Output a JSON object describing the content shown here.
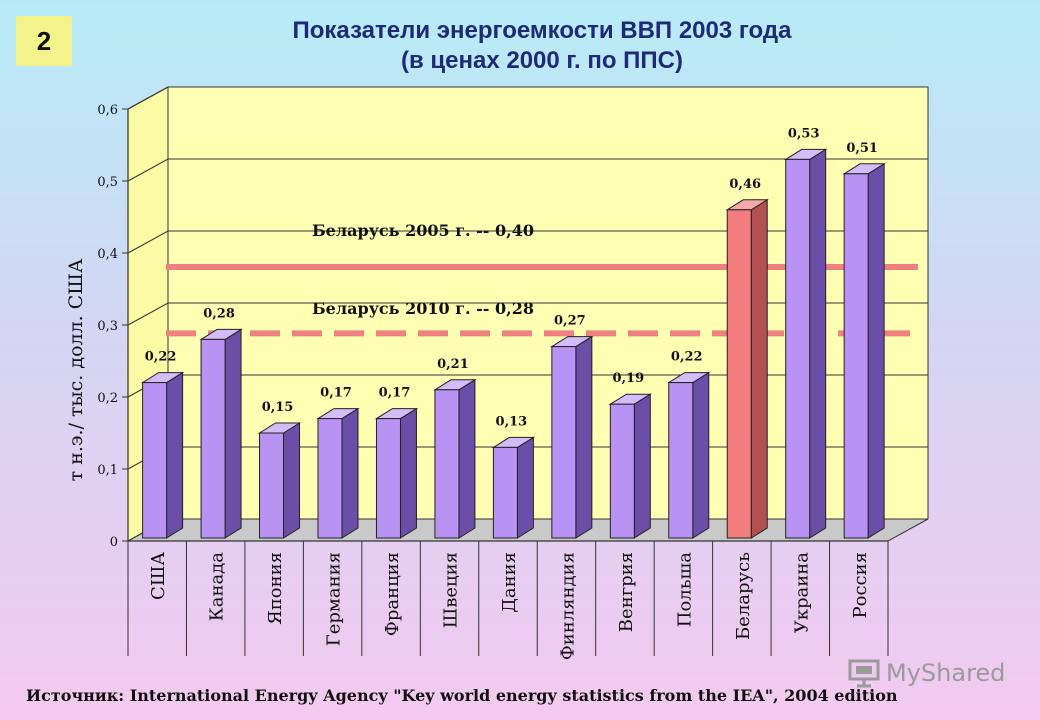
{
  "slide": {
    "number": "2"
  },
  "title": {
    "line1": "Показатели энергоемкости ВВП 2003 года",
    "line2": "(в ценах 2000 г. по ППС)"
  },
  "source": "Источник: International Energy Agency \"Key world energy statistics from the IEA\", 2004 edition",
  "watermark": {
    "text": "MyShared",
    "icon": "presentation-icon"
  },
  "colors": {
    "bar": "#b993f4",
    "bar_highlight": "#f27d7d",
    "plot_back": "#ffffb4",
    "plot_side": "#fbfba6",
    "reference_line": "#f08080",
    "title": "#1e2a78"
  },
  "chart_data": {
    "type": "bar",
    "ylabel": "т н.э./ тыс. долл. США",
    "ylim": [
      0,
      0.6
    ],
    "yticks": [
      "0",
      "0,1",
      "0,2",
      "0,3",
      "0,4",
      "0,5",
      "0,6"
    ],
    "grid": true,
    "categories": [
      "США",
      "Канада",
      "Япония",
      "Германия",
      "Франция",
      "Швеция",
      "Дания",
      "Финляндия",
      "Венгрия",
      "Польша",
      "Беларусь",
      "Украина",
      "Россия"
    ],
    "values": [
      0.22,
      0.28,
      0.15,
      0.17,
      0.17,
      0.21,
      0.13,
      0.27,
      0.19,
      0.22,
      0.46,
      0.53,
      0.51
    ],
    "value_labels": [
      "0,22",
      "0,28",
      "0,15",
      "0,17",
      "0,17",
      "0,21",
      "0,13",
      "0,27",
      "0,19",
      "0,22",
      "0,46",
      "0,53",
      "0,51"
    ],
    "highlight_category": "Беларусь",
    "reference_lines": [
      {
        "label": "Беларусь 2005 г. -- 0,40",
        "value": 0.4,
        "style": "solid"
      },
      {
        "label": "Беларусь 2010 г. -- 0,28",
        "value": 0.28,
        "style": "dashed"
      }
    ]
  }
}
